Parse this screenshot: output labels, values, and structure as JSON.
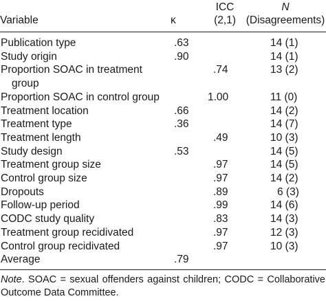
{
  "headers": {
    "variable": "Variable",
    "kappa": "κ",
    "icc_line1": "ICC",
    "icc_line2": "(2,1)",
    "n_line1": "N",
    "n_line2": "(Disagreements)"
  },
  "rows": [
    {
      "variable": "Publication type",
      "kappa": ".63",
      "icc": "",
      "n": "14 (1)"
    },
    {
      "variable": "Study origin",
      "kappa": ".90",
      "icc": "",
      "n": "14 (1)"
    },
    {
      "variable": "Proportion SOAC in treatment",
      "variable_cont": "group",
      "kappa": "",
      "icc": ".74",
      "n": "13 (2)"
    },
    {
      "variable": "Proportion SOAC in control group",
      "kappa": "",
      "icc": "1.00",
      "n": "11 (0)"
    },
    {
      "variable": "Treatment location",
      "kappa": ".66",
      "icc": "",
      "n": "14 (2)"
    },
    {
      "variable": "Treatment type",
      "kappa": ".36",
      "icc": "",
      "n": "14 (7)"
    },
    {
      "variable": "Treatment length",
      "kappa": "",
      "icc": ".49",
      "n": "10 (3)"
    },
    {
      "variable": "Study design",
      "kappa": ".53",
      "icc": "",
      "n": "14 (5)"
    },
    {
      "variable": "Treatment group size",
      "kappa": "",
      "icc": ".97",
      "n": "14 (5)"
    },
    {
      "variable": "Control group size",
      "kappa": "",
      "icc": ".97",
      "n": "14 (2)"
    },
    {
      "variable": "Dropouts",
      "kappa": "",
      "icc": ".89",
      "n": "6 (3)"
    },
    {
      "variable": "Follow-up period",
      "kappa": "",
      "icc": ".99",
      "n": "14 (6)"
    },
    {
      "variable": "CODC study quality",
      "kappa": "",
      "icc": ".83",
      "n": "14 (3)"
    },
    {
      "variable": "Treatment group recidivated",
      "kappa": "",
      "icc": ".97",
      "n": "12 (3)"
    },
    {
      "variable": "Control group recidivated",
      "kappa": "",
      "icc": ".97",
      "n": "10 (3)"
    },
    {
      "variable": "Average",
      "kappa": ".79",
      "icc": "",
      "n": ""
    }
  ],
  "note": {
    "label": "Note",
    "text": ". SOAC = sexual offenders against children; CODC = Collaborative Outcome Data Committee."
  }
}
